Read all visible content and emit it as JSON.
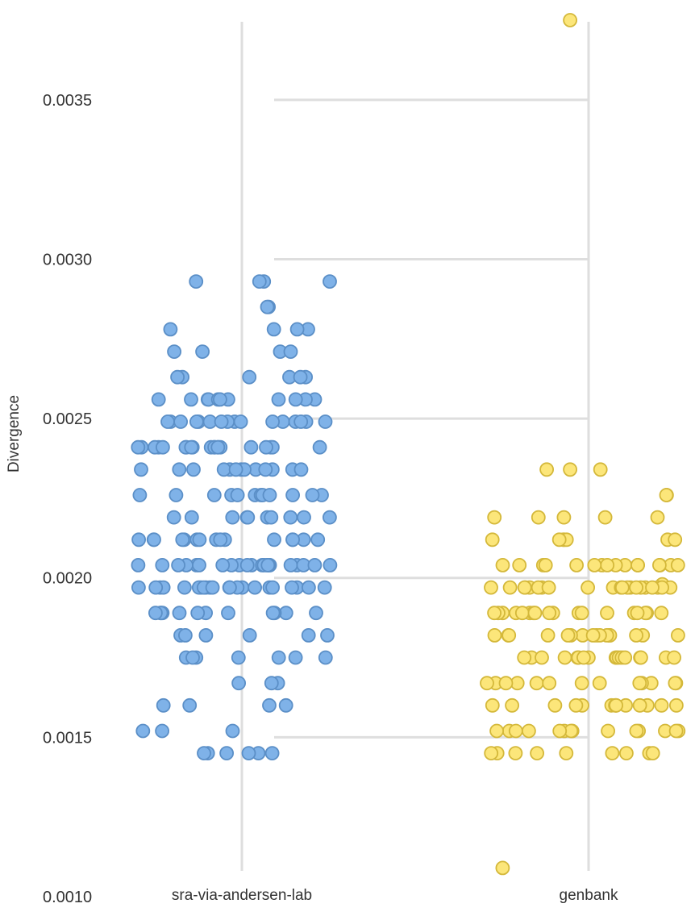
{
  "chart_data": {
    "type": "scatter",
    "ylabel": "Divergence",
    "ylim": [
      0.001,
      0.00375
    ],
    "y_ticks": [
      "0.0010",
      "0.0015",
      "0.0020",
      "0.0025",
      "0.0030",
      "0.0035"
    ],
    "categories": [
      "sra-via-andersen-lab",
      "genbank"
    ],
    "grid": true,
    "colors": {
      "sra-via-andersen-lab": {
        "fill": "#7fb2e8",
        "stroke": "#5b8fc7"
      },
      "genbank": {
        "fill": "#fce67a",
        "stroke": "#d4b83a"
      },
      "grid": "#dedede"
    },
    "series": [
      {
        "category": "sra-via-andersen-lab",
        "values": [
          0.00293,
          0.00293,
          0.00293,
          0.00293,
          0.00285,
          0.00285,
          0.00278,
          0.00278,
          0.00278,
          0.00278,
          0.00271,
          0.00271,
          0.00271,
          0.00271,
          0.00263,
          0.00263,
          0.00263,
          0.00263,
          0.00263,
          0.00263,
          0.00256,
          0.00256,
          0.00256,
          0.00256,
          0.00256,
          0.00256,
          0.00256,
          0.00256,
          0.00256,
          0.00256,
          0.00256,
          0.00249,
          0.00249,
          0.00249,
          0.00249,
          0.00249,
          0.00249,
          0.00249,
          0.00249,
          0.00249,
          0.00249,
          0.00249,
          0.00249,
          0.00249,
          0.00249,
          0.00249,
          0.00249,
          0.00241,
          0.00241,
          0.00241,
          0.00241,
          0.00241,
          0.00241,
          0.00241,
          0.00241,
          0.00241,
          0.00241,
          0.00241,
          0.00241,
          0.00241,
          0.00241,
          0.00241,
          0.00241,
          0.00241,
          0.00241,
          0.00241,
          0.00241,
          0.00234,
          0.00234,
          0.00234,
          0.00234,
          0.00234,
          0.00234,
          0.00234,
          0.00234,
          0.00234,
          0.00234,
          0.00234,
          0.00234,
          0.00234,
          0.00226,
          0.00226,
          0.00226,
          0.00226,
          0.00226,
          0.00226,
          0.00226,
          0.00226,
          0.00226,
          0.00226,
          0.00226,
          0.00226,
          0.00219,
          0.00219,
          0.00219,
          0.00219,
          0.00219,
          0.00219,
          0.00219,
          0.00219,
          0.00219,
          0.00219,
          0.00212,
          0.00212,
          0.00212,
          0.00212,
          0.00212,
          0.00212,
          0.00212,
          0.00212,
          0.00212,
          0.00212,
          0.00212,
          0.00212,
          0.00212,
          0.00212,
          0.00212,
          0.00204,
          0.00204,
          0.00204,
          0.00204,
          0.00204,
          0.00204,
          0.00204,
          0.00204,
          0.00204,
          0.00204,
          0.00204,
          0.00204,
          0.00204,
          0.00204,
          0.00204,
          0.00204,
          0.00204,
          0.00204,
          0.00204,
          0.00204,
          0.00204,
          0.00204,
          0.00197,
          0.00197,
          0.00197,
          0.00197,
          0.00197,
          0.00197,
          0.00197,
          0.00197,
          0.00197,
          0.00197,
          0.00197,
          0.00197,
          0.00197,
          0.00197,
          0.00197,
          0.00197,
          0.00197,
          0.00197,
          0.00197,
          0.00197,
          0.00197,
          0.00197,
          0.00189,
          0.00189,
          0.00189,
          0.00189,
          0.00189,
          0.00189,
          0.00189,
          0.00189,
          0.00189,
          0.00189,
          0.00189,
          0.00189,
          0.00182,
          0.00182,
          0.00182,
          0.00182,
          0.00182,
          0.00182,
          0.00175,
          0.00175,
          0.00175,
          0.00175,
          0.00175,
          0.00175,
          0.00175,
          0.00167,
          0.00167,
          0.00167,
          0.0016,
          0.0016,
          0.0016,
          0.0016,
          0.00152,
          0.00152,
          0.00152,
          0.00145,
          0.00145,
          0.00145,
          0.00145,
          0.00145,
          0.00145
        ]
      },
      {
        "category": "genbank",
        "values": [
          0.00375,
          0.00234,
          0.00234,
          0.00234,
          0.00226,
          0.00226,
          0.00219,
          0.00219,
          0.00219,
          0.00219,
          0.00219,
          0.00212,
          0.00212,
          0.00212,
          0.00212,
          0.00212,
          0.00212,
          0.00212,
          0.00204,
          0.00204,
          0.00204,
          0.00204,
          0.00204,
          0.00204,
          0.00204,
          0.00204,
          0.00204,
          0.00204,
          0.00204,
          0.00204,
          0.00204,
          0.00204,
          0.00204,
          0.00204,
          0.00198,
          0.00197,
          0.00197,
          0.00197,
          0.00197,
          0.00197,
          0.00197,
          0.00197,
          0.00197,
          0.00197,
          0.00197,
          0.00197,
          0.00197,
          0.00197,
          0.00197,
          0.00197,
          0.00197,
          0.00197,
          0.00197,
          0.00197,
          0.00197,
          0.00197,
          0.00189,
          0.00189,
          0.00189,
          0.00189,
          0.00189,
          0.00189,
          0.00189,
          0.00189,
          0.00189,
          0.00189,
          0.00189,
          0.00189,
          0.00189,
          0.00189,
          0.00189,
          0.00189,
          0.00189,
          0.00189,
          0.00182,
          0.00182,
          0.00182,
          0.00182,
          0.00182,
          0.00182,
          0.00182,
          0.00182,
          0.00182,
          0.00182,
          0.00182,
          0.00182,
          0.00182,
          0.00182,
          0.00182,
          0.00182,
          0.00175,
          0.00175,
          0.00175,
          0.00175,
          0.00175,
          0.00175,
          0.00175,
          0.00175,
          0.00175,
          0.00175,
          0.00175,
          0.00175,
          0.00175,
          0.00175,
          0.00175,
          0.00175,
          0.00175,
          0.00167,
          0.00167,
          0.00167,
          0.00167,
          0.00167,
          0.00167,
          0.00167,
          0.00167,
          0.00167,
          0.00167,
          0.00167,
          0.00167,
          0.00167,
          0.0016,
          0.0016,
          0.0016,
          0.0016,
          0.0016,
          0.0016,
          0.0016,
          0.0016,
          0.0016,
          0.0016,
          0.0016,
          0.0016,
          0.0016,
          0.0016,
          0.00152,
          0.00152,
          0.00152,
          0.00152,
          0.00152,
          0.00152,
          0.00152,
          0.00152,
          0.00152,
          0.00152,
          0.00152,
          0.00152,
          0.00152,
          0.00152,
          0.00145,
          0.00145,
          0.00145,
          0.00145,
          0.00145,
          0.00145,
          0.00145,
          0.00145,
          0.00145,
          0.00109
        ]
      }
    ]
  }
}
